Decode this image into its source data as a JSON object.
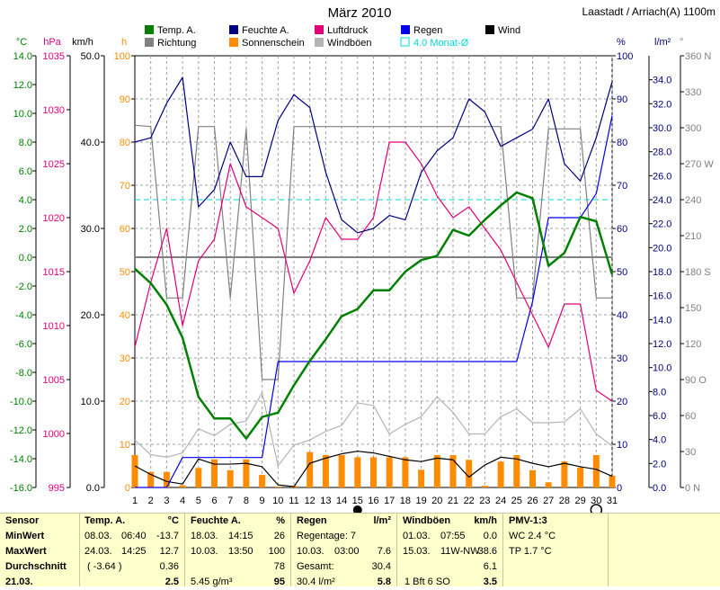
{
  "chart_data": {
    "type": "line",
    "title": "März 2010",
    "station": "Laastadt / Arriach(A) 1100m",
    "x": [
      1,
      2,
      3,
      4,
      5,
      6,
      7,
      8,
      9,
      10,
      11,
      12,
      13,
      14,
      15,
      16,
      17,
      18,
      19,
      20,
      21,
      22,
      23,
      24,
      25,
      26,
      27,
      28,
      29,
      30,
      31
    ],
    "x_ticks": [
      "1",
      "2",
      "3",
      "4",
      "5",
      "6",
      "7",
      "8",
      "9",
      "10",
      "11",
      "12",
      "13",
      "14",
      "15",
      "16",
      "17",
      "18",
      "19",
      "20",
      "21",
      "22",
      "23",
      "24",
      "25",
      "26",
      "27",
      "28",
      "29",
      "30",
      "31"
    ],
    "axes": [
      {
        "unit": "°C",
        "min": -16,
        "max": 14,
        "ticks": [
          "14.0",
          "12.0",
          "10.0",
          "8.0",
          "6.0",
          "4.0",
          "2.0",
          "0.0",
          "-2.0",
          "-4.0",
          "-6.0",
          "-8.0",
          "-10.0",
          "-12.0",
          "-14.0",
          "-16.0"
        ]
      },
      {
        "unit": "hPa",
        "min": 995,
        "max": 1035,
        "ticks": [
          "1035",
          "1030",
          "1025",
          "1020",
          "1015",
          "1010",
          "1005",
          "1000",
          "995"
        ]
      },
      {
        "unit": "km/h",
        "min": 0,
        "max": 50,
        "ticks": [
          "50.0",
          "40.0",
          "30.0",
          "20.0",
          "10.0",
          "0.0"
        ]
      },
      {
        "unit": "h",
        "min": 0,
        "max": 100,
        "ticks": [
          "100",
          "90",
          "80",
          "70",
          "60",
          "50",
          "40",
          "30",
          "20",
          "10",
          "0"
        ]
      },
      {
        "unit": "%",
        "min": 0,
        "max": 100,
        "ticks": [
          "100",
          "90",
          "80",
          "70",
          "60",
          "50",
          "40",
          "30",
          "20",
          "10",
          "0"
        ]
      },
      {
        "unit": "l/m²",
        "min": 0,
        "max": 36,
        "ticks": [
          "34.0",
          "32.0",
          "30.0",
          "28.0",
          "26.0",
          "24.0",
          "22.0",
          "20.0",
          "18.0",
          "16.0",
          "14.0",
          "12.0",
          "10.0",
          "8.0",
          "6.0",
          "4.0",
          "2.0",
          "0.0"
        ]
      },
      {
        "unit": "°",
        "min": 0,
        "max": 360,
        "ticks": [
          "360 N",
          "330",
          "300",
          "270 W",
          "240",
          "210",
          "180 S",
          "150",
          "120",
          "90 O",
          "60",
          "30",
          "0 N"
        ]
      }
    ],
    "series": [
      {
        "name": "Temp. A.",
        "color": "#008000",
        "axis": "°C",
        "values": [
          -0.8,
          -1.8,
          -3.3,
          -5.6,
          -9.7,
          -11.2,
          -11.2,
          -12.6,
          -11.1,
          -10.8,
          -8.9,
          -7.2,
          -5.7,
          -4.1,
          -3.6,
          -2.3,
          -2.3,
          -1.0,
          -0.2,
          0.1,
          1.9,
          1.5,
          2.6,
          3.6,
          4.5,
          4.1,
          -0.6,
          0.3,
          2.8,
          2.5,
          -1.2
        ]
      },
      {
        "name": "Feuchte A.",
        "color": "#000080",
        "axis": "%",
        "values": [
          80,
          81,
          89,
          95,
          65,
          69,
          80,
          72,
          72,
          85,
          91,
          88,
          73,
          62,
          59,
          60,
          63,
          62,
          73,
          78,
          81,
          90,
          87,
          79,
          81,
          83,
          90,
          75,
          71,
          81,
          94
        ]
      },
      {
        "name": "Luftdruck",
        "color": "#e0007a",
        "axis": "hPa",
        "values": [
          1008,
          1014,
          1019,
          1010,
          1016,
          1018,
          1025,
          1021,
          1020,
          1019,
          1013,
          1016,
          1020,
          1018,
          1018,
          1020,
          1027,
          1027,
          1025,
          1022,
          1020,
          1021,
          1019,
          1017,
          1014,
          1011,
          1008,
          1012,
          1012,
          1004,
          1003
        ]
      },
      {
        "name": "Regen",
        "color": "#0000ee",
        "axis": "l/m²",
        "values": [
          0,
          0,
          0,
          2.5,
          2.5,
          2.5,
          2.5,
          2.5,
          2.5,
          10.5,
          10.5,
          10.5,
          10.5,
          10.5,
          10.5,
          10.5,
          10.5,
          10.5,
          10.5,
          10.5,
          10.5,
          10.5,
          10.5,
          10.5,
          10.5,
          15.5,
          22.5,
          22.5,
          22.5,
          24.5,
          31
        ]
      },
      {
        "name": "Wind",
        "color": "#000000",
        "axis": "km/h",
        "values": [
          2.5,
          1.5,
          0.7,
          0.4,
          3.3,
          2.7,
          2.7,
          2.8,
          2.4,
          0.3,
          0.1,
          2.8,
          3.4,
          3.9,
          4.2,
          4.0,
          3.6,
          3.2,
          3.0,
          3.4,
          3.2,
          1.2,
          2.6,
          3.5,
          3.3,
          2.8,
          2.4,
          2.8,
          2.4,
          2.1,
          1.3
        ]
      },
      {
        "name": "Windböen",
        "color": "#b4b4b4",
        "axis": "km/h",
        "values": [
          5.5,
          3.8,
          3.5,
          4.0,
          6.8,
          6.0,
          7.3,
          7.7,
          11.0,
          2.5,
          4.9,
          5.5,
          6.5,
          7.2,
          9.8,
          9.5,
          6.2,
          7.3,
          8.2,
          10.5,
          8.7,
          6.2,
          6.2,
          8.2,
          9.1,
          7.5,
          7.5,
          7.6,
          9.1,
          6.2,
          4.8
        ]
      },
      {
        "name": "Richtung",
        "color": "#808080",
        "axis": "°",
        "values": [
          302,
          301,
          158,
          158,
          301,
          301,
          158,
          299,
          90,
          90,
          301,
          301,
          301,
          301,
          301,
          301,
          301,
          301,
          301,
          301,
          301,
          301,
          301,
          301,
          158,
          158,
          299,
          299,
          299,
          158,
          158
        ]
      },
      {
        "name": "Sonnenschein",
        "color": "#ff8c00",
        "type": "bar",
        "axis": "h",
        "values": [
          7.5,
          3.6,
          3.6,
          0.5,
          4.5,
          6.5,
          4.0,
          6.5,
          2.9,
          0.2,
          0.4,
          8.2,
          7.5,
          7.5,
          7.0,
          7.0,
          7.0,
          7.0,
          4.1,
          7.5,
          7.5,
          6.4,
          0.4,
          6.0,
          7.5,
          4.0,
          1.2,
          6.0,
          4.6,
          7.5,
          2.7
        ]
      },
      {
        "name": "4.0 Monat-Ø",
        "color": "#00d8d8",
        "type": "reference",
        "axis": "°C",
        "value": 4.0
      }
    ],
    "freezing_line": {
      "value": 0.0,
      "axis": "°C",
      "color": "#808080"
    },
    "legend": [
      {
        "label": "Temp. A.",
        "color": "#008000",
        "style": "box"
      },
      {
        "label": "Feuchte A.",
        "color": "#000080",
        "style": "box"
      },
      {
        "label": "Luftdruck",
        "color": "#e0007a",
        "style": "box"
      },
      {
        "label": "Regen",
        "color": "#0000ee",
        "style": "box"
      },
      {
        "label": "Wind",
        "color": "#000000",
        "style": "box"
      },
      {
        "label": "Richtung",
        "color": "#808080",
        "style": "box"
      },
      {
        "label": "Sonnenschein",
        "color": "#ff8c00",
        "style": "box"
      },
      {
        "label": "Windböen",
        "color": "#b4b4b4",
        "style": "box"
      },
      {
        "label": "4.0 Monat-Ø",
        "color": "#00d8d8",
        "style": "outline"
      }
    ],
    "moon_phases": [
      {
        "day": 15,
        "phase": "new"
      },
      {
        "day": 30,
        "phase": "full"
      }
    ],
    "grid": true
  },
  "stats": {
    "sensor": {
      "header": "Sensor",
      "rows": [
        "MinWert",
        "MaxWert",
        "Durchschnitt",
        "21.03."
      ]
    },
    "temp": {
      "header": "Temp. A.",
      "unit": "°C",
      "rows": [
        [
          "08.03.",
          "06:40",
          "-13.7"
        ],
        [
          "24.03.",
          "14:25",
          "12.7"
        ],
        [
          "( -3.64 )",
          "",
          "0.36"
        ],
        [
          "",
          "",
          "2.5"
        ]
      ]
    },
    "humidity": {
      "header": "Feuchte A.",
      "unit": "%",
      "rows": [
        [
          "18.03.",
          "14:15",
          "26"
        ],
        [
          "10.03.",
          "13:50",
          "100"
        ],
        [
          "",
          "",
          "78"
        ],
        [
          "5.45 g/m³",
          "",
          "95"
        ]
      ]
    },
    "rain": {
      "header": "Regen",
      "unit": "l/m²",
      "rows": [
        [
          "Regentage: 7",
          ""
        ],
        [
          "10.03.",
          "03:00",
          "7.6"
        ],
        [
          "Gesamt:",
          "30.4"
        ],
        [
          "30.4 l/m²",
          "5.8"
        ]
      ]
    },
    "gust": {
      "header": "Windböen",
      "unit": "km/h",
      "rows": [
        [
          "01.03.",
          "07:55",
          "0.0"
        ],
        [
          "15.03.",
          "11W-NW",
          "38.6"
        ],
        [
          "",
          "",
          "6.1"
        ],
        [
          "1 Bft 6 SO",
          "",
          "3.5"
        ]
      ]
    },
    "pmv": {
      "header": "PMV-1:3",
      "rows": [
        "WC 2.4 °C",
        "TP 1.7 °C"
      ]
    }
  }
}
